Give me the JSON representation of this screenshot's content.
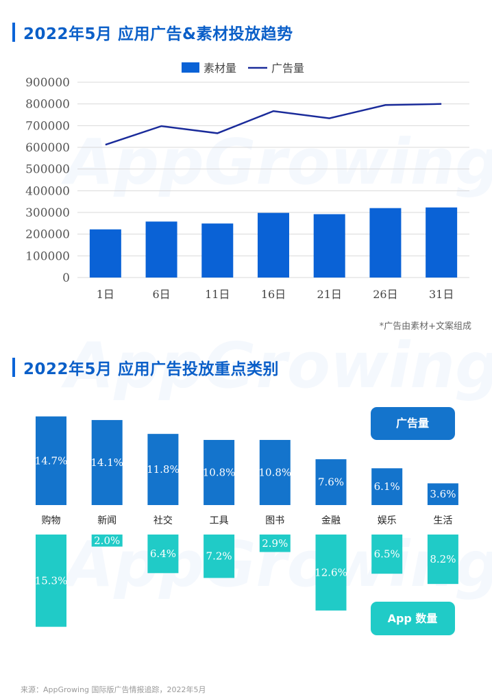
{
  "colors": {
    "accent": "#0b5fc8",
    "bar1": "#0a62d6",
    "line": "#1a2b9a",
    "bar2_top": "#1474cc",
    "bar2_bottom": "#20cbc7",
    "tag1": "#1474cc",
    "tag2": "#20cbc7"
  },
  "watermark": "AppGrowing",
  "section1": {
    "title": "2022年5月 应用广告&素材投放趋势"
  },
  "section2": {
    "title": "2022年5月 应用广告投放重点类别"
  },
  "chart_data": [
    {
      "type": "bar",
      "categories": [
        "1日",
        "6日",
        "11日",
        "16日",
        "21日",
        "26日",
        "31日"
      ],
      "series": [
        {
          "name": "素材量",
          "type": "bar",
          "values": [
            222000,
            258000,
            249000,
            298000,
            292000,
            320000,
            323000
          ]
        },
        {
          "name": "广告量",
          "type": "line",
          "values": [
            612000,
            698000,
            665000,
            767000,
            734000,
            795000,
            800000
          ]
        }
      ],
      "ylim": [
        0,
        900000
      ],
      "yticks": [
        0,
        100000,
        200000,
        300000,
        400000,
        500000,
        600000,
        700000,
        800000,
        900000
      ],
      "grid": true,
      "legend": "top-center",
      "note": "*广告由素材+文案组成"
    },
    {
      "type": "bar",
      "categories": [
        "购物",
        "新闻",
        "社交",
        "工具",
        "图书",
        "金融",
        "娱乐",
        "生活"
      ],
      "series": [
        {
          "name": "广告量",
          "values": [
            14.7,
            14.1,
            11.8,
            10.8,
            10.8,
            7.6,
            6.1,
            3.6
          ],
          "labels": [
            "14.7%",
            "14.1%",
            "11.8%",
            "10.8%",
            "10.8%",
            "7.6%",
            "6.1%",
            "3.6%"
          ]
        },
        {
          "name": "App 数量",
          "values": [
            15.3,
            2.0,
            6.4,
            7.2,
            2.9,
            12.6,
            6.5,
            8.2
          ],
          "labels": [
            "15.3%",
            "2.0%",
            "6.4%",
            "7.2%",
            "2.9%",
            "12.6%",
            "6.5%",
            "8.2%"
          ]
        }
      ],
      "unit": "%",
      "legend": "right"
    }
  ],
  "source": "来源：AppGrowing 国际版广告情报追踪，2022年5月"
}
